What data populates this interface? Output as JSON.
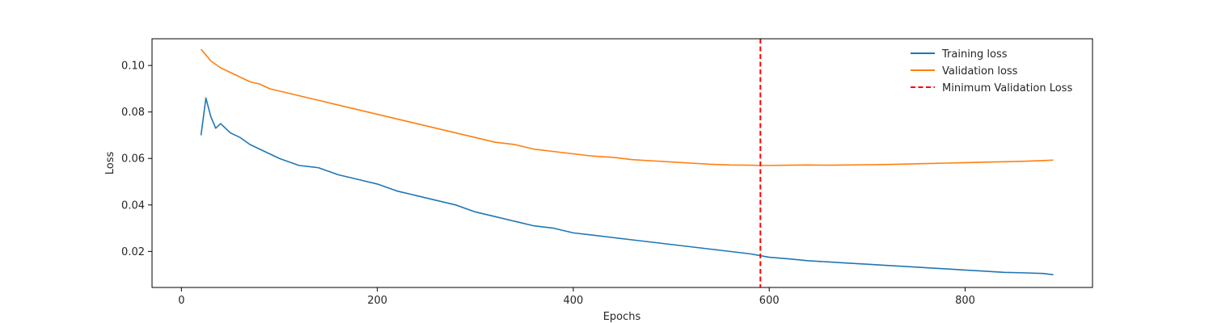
{
  "chart_data": {
    "type": "line",
    "title": "",
    "xlabel": "Epochs",
    "ylabel": "Loss",
    "xlim": [
      -30,
      930
    ],
    "ylim": [
      0.0045,
      0.1115
    ],
    "xticks": [
      0,
      200,
      400,
      600,
      800
    ],
    "xtick_labels": [
      "0",
      "200",
      "400",
      "600",
      "800"
    ],
    "yticks": [
      0.02,
      0.04,
      0.06,
      0.08,
      0.1
    ],
    "ytick_labels": [
      "0.02",
      "0.04",
      "0.06",
      "0.08",
      "0.10"
    ],
    "grid": false,
    "legend_position": "top-right",
    "legend_frame": false,
    "series": [
      {
        "name": "Training loss",
        "color": "#1f77b4",
        "style": "solid",
        "x": [
          20,
          25,
          30,
          35,
          40,
          50,
          60,
          70,
          80,
          90,
          100,
          120,
          140,
          160,
          180,
          200,
          220,
          240,
          260,
          280,
          300,
          320,
          340,
          360,
          380,
          400,
          420,
          440,
          460,
          480,
          500,
          520,
          540,
          560,
          580,
          600,
          620,
          640,
          660,
          680,
          700,
          720,
          740,
          760,
          780,
          800,
          820,
          840,
          860,
          880,
          890
        ],
        "y": [
          0.07,
          0.086,
          0.078,
          0.073,
          0.075,
          0.071,
          0.069,
          0.066,
          0.064,
          0.062,
          0.06,
          0.057,
          0.056,
          0.053,
          0.051,
          0.049,
          0.046,
          0.044,
          0.042,
          0.04,
          0.037,
          0.035,
          0.033,
          0.031,
          0.03,
          0.028,
          0.027,
          0.026,
          0.025,
          0.024,
          0.023,
          0.022,
          0.021,
          0.02,
          0.019,
          0.0175,
          0.0168,
          0.016,
          0.0155,
          0.015,
          0.0145,
          0.014,
          0.0135,
          0.013,
          0.0125,
          0.012,
          0.0115,
          0.011,
          0.0108,
          0.0105,
          0.01
        ]
      },
      {
        "name": "Validation loss",
        "color": "#ff7f0e",
        "style": "solid",
        "x": [
          20,
          30,
          40,
          50,
          60,
          70,
          80,
          90,
          100,
          120,
          140,
          160,
          180,
          200,
          220,
          240,
          260,
          280,
          300,
          320,
          340,
          360,
          380,
          400,
          420,
          440,
          460,
          480,
          500,
          520,
          540,
          560,
          580,
          590,
          600,
          620,
          640,
          660,
          680,
          700,
          720,
          740,
          760,
          780,
          800,
          820,
          840,
          860,
          880,
          890
        ],
        "y": [
          0.107,
          0.102,
          0.099,
          0.097,
          0.095,
          0.093,
          0.092,
          0.09,
          0.089,
          0.087,
          0.085,
          0.083,
          0.081,
          0.079,
          0.077,
          0.075,
          0.073,
          0.071,
          0.069,
          0.067,
          0.066,
          0.064,
          0.063,
          0.062,
          0.061,
          0.0605,
          0.0595,
          0.059,
          0.0585,
          0.058,
          0.0575,
          0.0572,
          0.0571,
          0.057,
          0.057,
          0.0571,
          0.0572,
          0.0571,
          0.0572,
          0.0573,
          0.0574,
          0.0576,
          0.0578,
          0.058,
          0.0582,
          0.0584,
          0.0586,
          0.0588,
          0.0591,
          0.0593
        ]
      }
    ],
    "vlines": [
      {
        "name": "Minimum Validation Loss",
        "x": 591,
        "color": "#ff0000",
        "style": "dashed"
      }
    ]
  }
}
